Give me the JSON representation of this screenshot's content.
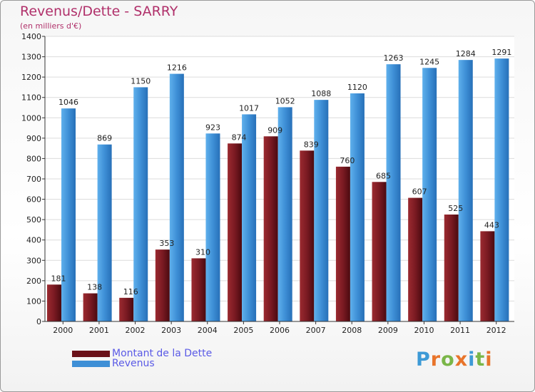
{
  "title": "Revenus/Dette - SARRY",
  "subtitle": "(en milliers d'€)",
  "colors": {
    "dette": "#7a1a22",
    "revenus": "#3e8fd6",
    "title": "#b0306a",
    "legend_text": "#5a5ae6"
  },
  "legend": [
    {
      "label": "Montant de la Dette",
      "color": "#6a1018"
    },
    {
      "label": "Revenus",
      "color": "#3e8fd6"
    }
  ],
  "logo": {
    "letters": [
      "P",
      "r",
      "o",
      "x",
      "i",
      "t",
      "i"
    ],
    "colors": [
      "#3d9ad6",
      "#e8742a",
      "#7ab648",
      "#e8742a",
      "#3d9ad6",
      "#7ab648",
      "#e8742a"
    ]
  },
  "chart_data": {
    "type": "bar",
    "categories": [
      "2000",
      "2001",
      "2002",
      "2003",
      "2004",
      "2005",
      "2006",
      "2007",
      "2008",
      "2009",
      "2010",
      "2011",
      "2012"
    ],
    "series": [
      {
        "name": "Montant de la Dette",
        "values": [
          181,
          138,
          116,
          353,
          310,
          874,
          909,
          839,
          760,
          685,
          607,
          525,
          443
        ]
      },
      {
        "name": "Revenus",
        "values": [
          1046,
          869,
          1150,
          1216,
          923,
          1017,
          1052,
          1088,
          1120,
          1263,
          1245,
          1284,
          1291
        ]
      }
    ],
    "ylim": [
      0,
      1400
    ],
    "yticks": [
      0,
      100,
      200,
      300,
      400,
      500,
      600,
      700,
      800,
      900,
      1000,
      1100,
      1200,
      1300,
      1400
    ],
    "grid": true,
    "legend_position": "bottom-left"
  }
}
